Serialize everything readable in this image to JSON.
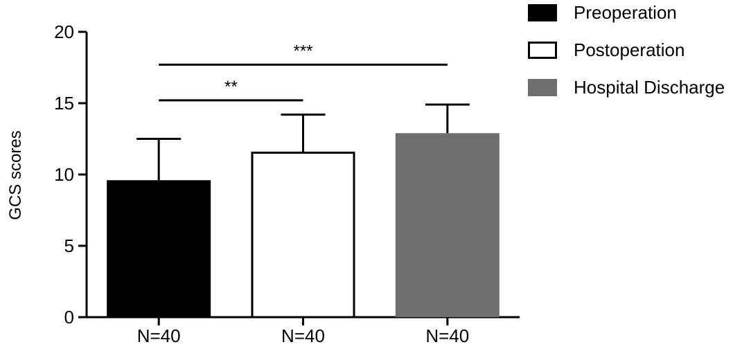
{
  "chart_data": {
    "type": "bar",
    "title": "",
    "xlabel": "",
    "ylabel": "GCS scores",
    "ylim": [
      0,
      20
    ],
    "yticks": [
      0,
      5,
      10,
      15,
      20
    ],
    "categories": [
      "N=40",
      "N=40",
      "N=40"
    ],
    "series": [
      {
        "name": "Preoperation",
        "value": 9.6,
        "error": 2.9,
        "color": "#000000",
        "fill": "#000000"
      },
      {
        "name": "Postoperation",
        "value": 11.6,
        "error": 2.6,
        "color": "#000000",
        "fill": "#ffffff"
      },
      {
        "name": "Hospital Discharge",
        "value": 12.9,
        "error": 2.0,
        "color": "#6e6e6e",
        "fill": "#6e6e6e"
      }
    ],
    "significance": [
      {
        "from": 0,
        "to": 1,
        "label": "**",
        "y": 15.2
      },
      {
        "from": 0,
        "to": 2,
        "label": "***",
        "y": 17.7
      }
    ],
    "legend_position": "top-right",
    "grid": false
  }
}
